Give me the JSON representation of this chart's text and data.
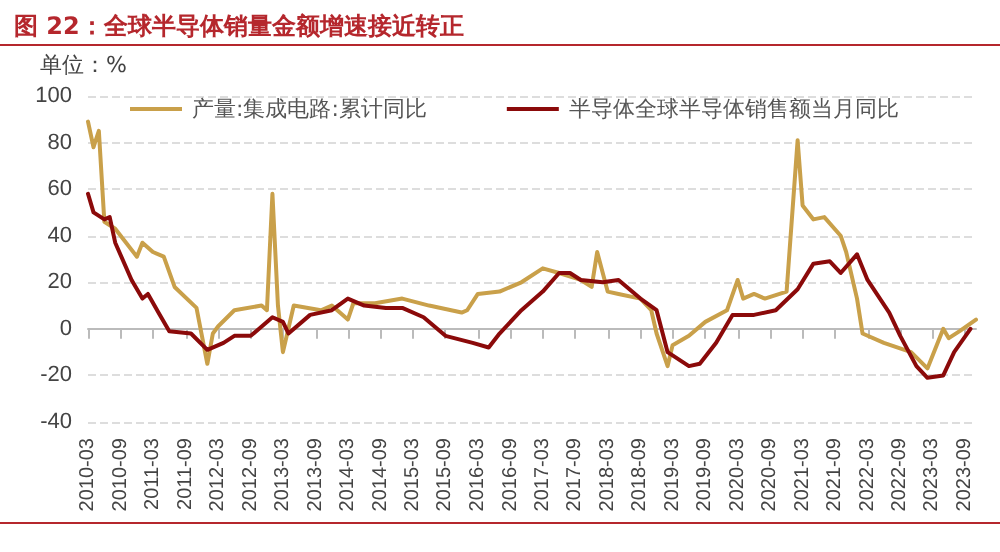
{
  "chart_data": {
    "type": "line",
    "title": "图 22：全球半导体销量金额增速接近转正",
    "ylabel": "单位：%",
    "xlim": [
      "2010-03",
      "2023-11"
    ],
    "xticks": [
      "2010-03",
      "2010-09",
      "2011-03",
      "2011-09",
      "2012-03",
      "2012-09",
      "2013-03",
      "2013-09",
      "2014-03",
      "2014-09",
      "2015-03",
      "2015-09",
      "2016-03",
      "2016-09",
      "2017-03",
      "2017-09",
      "2018-03",
      "2018-09",
      "2019-03",
      "2019-09",
      "2020-03",
      "2020-09",
      "2021-03",
      "2021-09",
      "2022-03",
      "2022-09",
      "2023-03",
      "2023-09"
    ],
    "ylim": [
      -40,
      100
    ],
    "yticks": [
      -40,
      -20,
      0,
      20,
      40,
      60,
      80,
      100
    ],
    "grid": "y",
    "legend": "top",
    "series": [
      {
        "name": "产量:集成电路:累计同比",
        "color": "#c9a04a",
        "x": [
          "2010-03",
          "2010-04",
          "2010-05",
          "2010-06",
          "2010-08",
          "2010-12",
          "2011-01",
          "2011-03",
          "2011-05",
          "2011-07",
          "2011-11",
          "2012-01",
          "2012-02",
          "2012-03",
          "2012-06",
          "2012-11",
          "2012-12",
          "2013-01",
          "2013-02",
          "2013-03",
          "2013-05",
          "2013-10",
          "2013-12",
          "2014-03",
          "2014-04",
          "2014-08",
          "2015-01",
          "2015-06",
          "2015-12",
          "2016-01",
          "2016-03",
          "2016-07",
          "2016-11",
          "2017-03",
          "2017-06",
          "2017-10",
          "2017-12",
          "2018-01",
          "2018-03",
          "2018-05",
          "2018-09",
          "2018-11",
          "2018-12",
          "2019-02",
          "2019-03",
          "2019-06",
          "2019-09",
          "2020-01",
          "2020-03",
          "2020-04",
          "2020-06",
          "2020-08",
          "2020-12",
          "2021-02",
          "2021-03",
          "2021-05",
          "2021-07",
          "2021-10",
          "2021-11",
          "2022-01",
          "2022-02",
          "2022-06",
          "2022-11",
          "2023-02",
          "2023-05",
          "2023-06",
          "2023-08",
          "2023-11"
        ],
        "values": [
          89,
          78,
          85,
          46,
          43,
          31,
          37,
          33,
          31,
          18,
          9,
          -15,
          -2,
          1,
          8,
          10,
          8,
          58,
          10,
          -10,
          10,
          8,
          10,
          4,
          11,
          11,
          13,
          10,
          7,
          8,
          15,
          16,
          20,
          26,
          24,
          21,
          18,
          33,
          16,
          15,
          13,
          8,
          -2,
          -16,
          -7,
          -3,
          3,
          8,
          21,
          13,
          15,
          13,
          16,
          81,
          53,
          47,
          48,
          40,
          33,
          13,
          -2,
          -6,
          -10,
          -17,
          0,
          -4,
          -1,
          4
        ]
      },
      {
        "name": "半导体全球半导体销售额当月同比",
        "color": "#8b0a0a",
        "x": [
          "2010-03",
          "2010-04",
          "2010-06",
          "2010-07",
          "2010-08",
          "2010-11",
          "2011-01",
          "2011-02",
          "2011-04",
          "2011-06",
          "2011-10",
          "2012-01",
          "2012-04",
          "2012-06",
          "2012-09",
          "2013-01",
          "2013-03",
          "2013-04",
          "2013-08",
          "2013-12",
          "2014-03",
          "2014-06",
          "2014-10",
          "2015-01",
          "2015-05",
          "2015-09",
          "2016-02",
          "2016-05",
          "2016-07",
          "2016-11",
          "2017-03",
          "2017-06",
          "2017-08",
          "2017-10",
          "2018-02",
          "2018-05",
          "2018-09",
          "2018-12",
          "2019-02",
          "2019-06",
          "2019-08",
          "2019-11",
          "2020-02",
          "2020-06",
          "2020-10",
          "2021-02",
          "2021-05",
          "2021-08",
          "2021-10",
          "2022-01",
          "2022-03",
          "2022-07",
          "2022-09",
          "2022-12",
          "2023-02",
          "2023-05",
          "2023-07",
          "2023-10"
        ],
        "values": [
          58,
          50,
          47,
          48,
          37,
          21,
          13,
          15,
          7,
          -1,
          -2,
          -9,
          -6,
          -3,
          -3,
          5,
          3,
          -2,
          6,
          8,
          13,
          10,
          9,
          9,
          5,
          -3,
          -6,
          -8,
          -2,
          8,
          16,
          24,
          24,
          21,
          20,
          21,
          13,
          8,
          -10,
          -16,
          -15,
          -6,
          6,
          6,
          8,
          17,
          28,
          29,
          24,
          32,
          21,
          7,
          -3,
          -16,
          -21,
          -20,
          -10,
          0
        ]
      }
    ]
  }
}
